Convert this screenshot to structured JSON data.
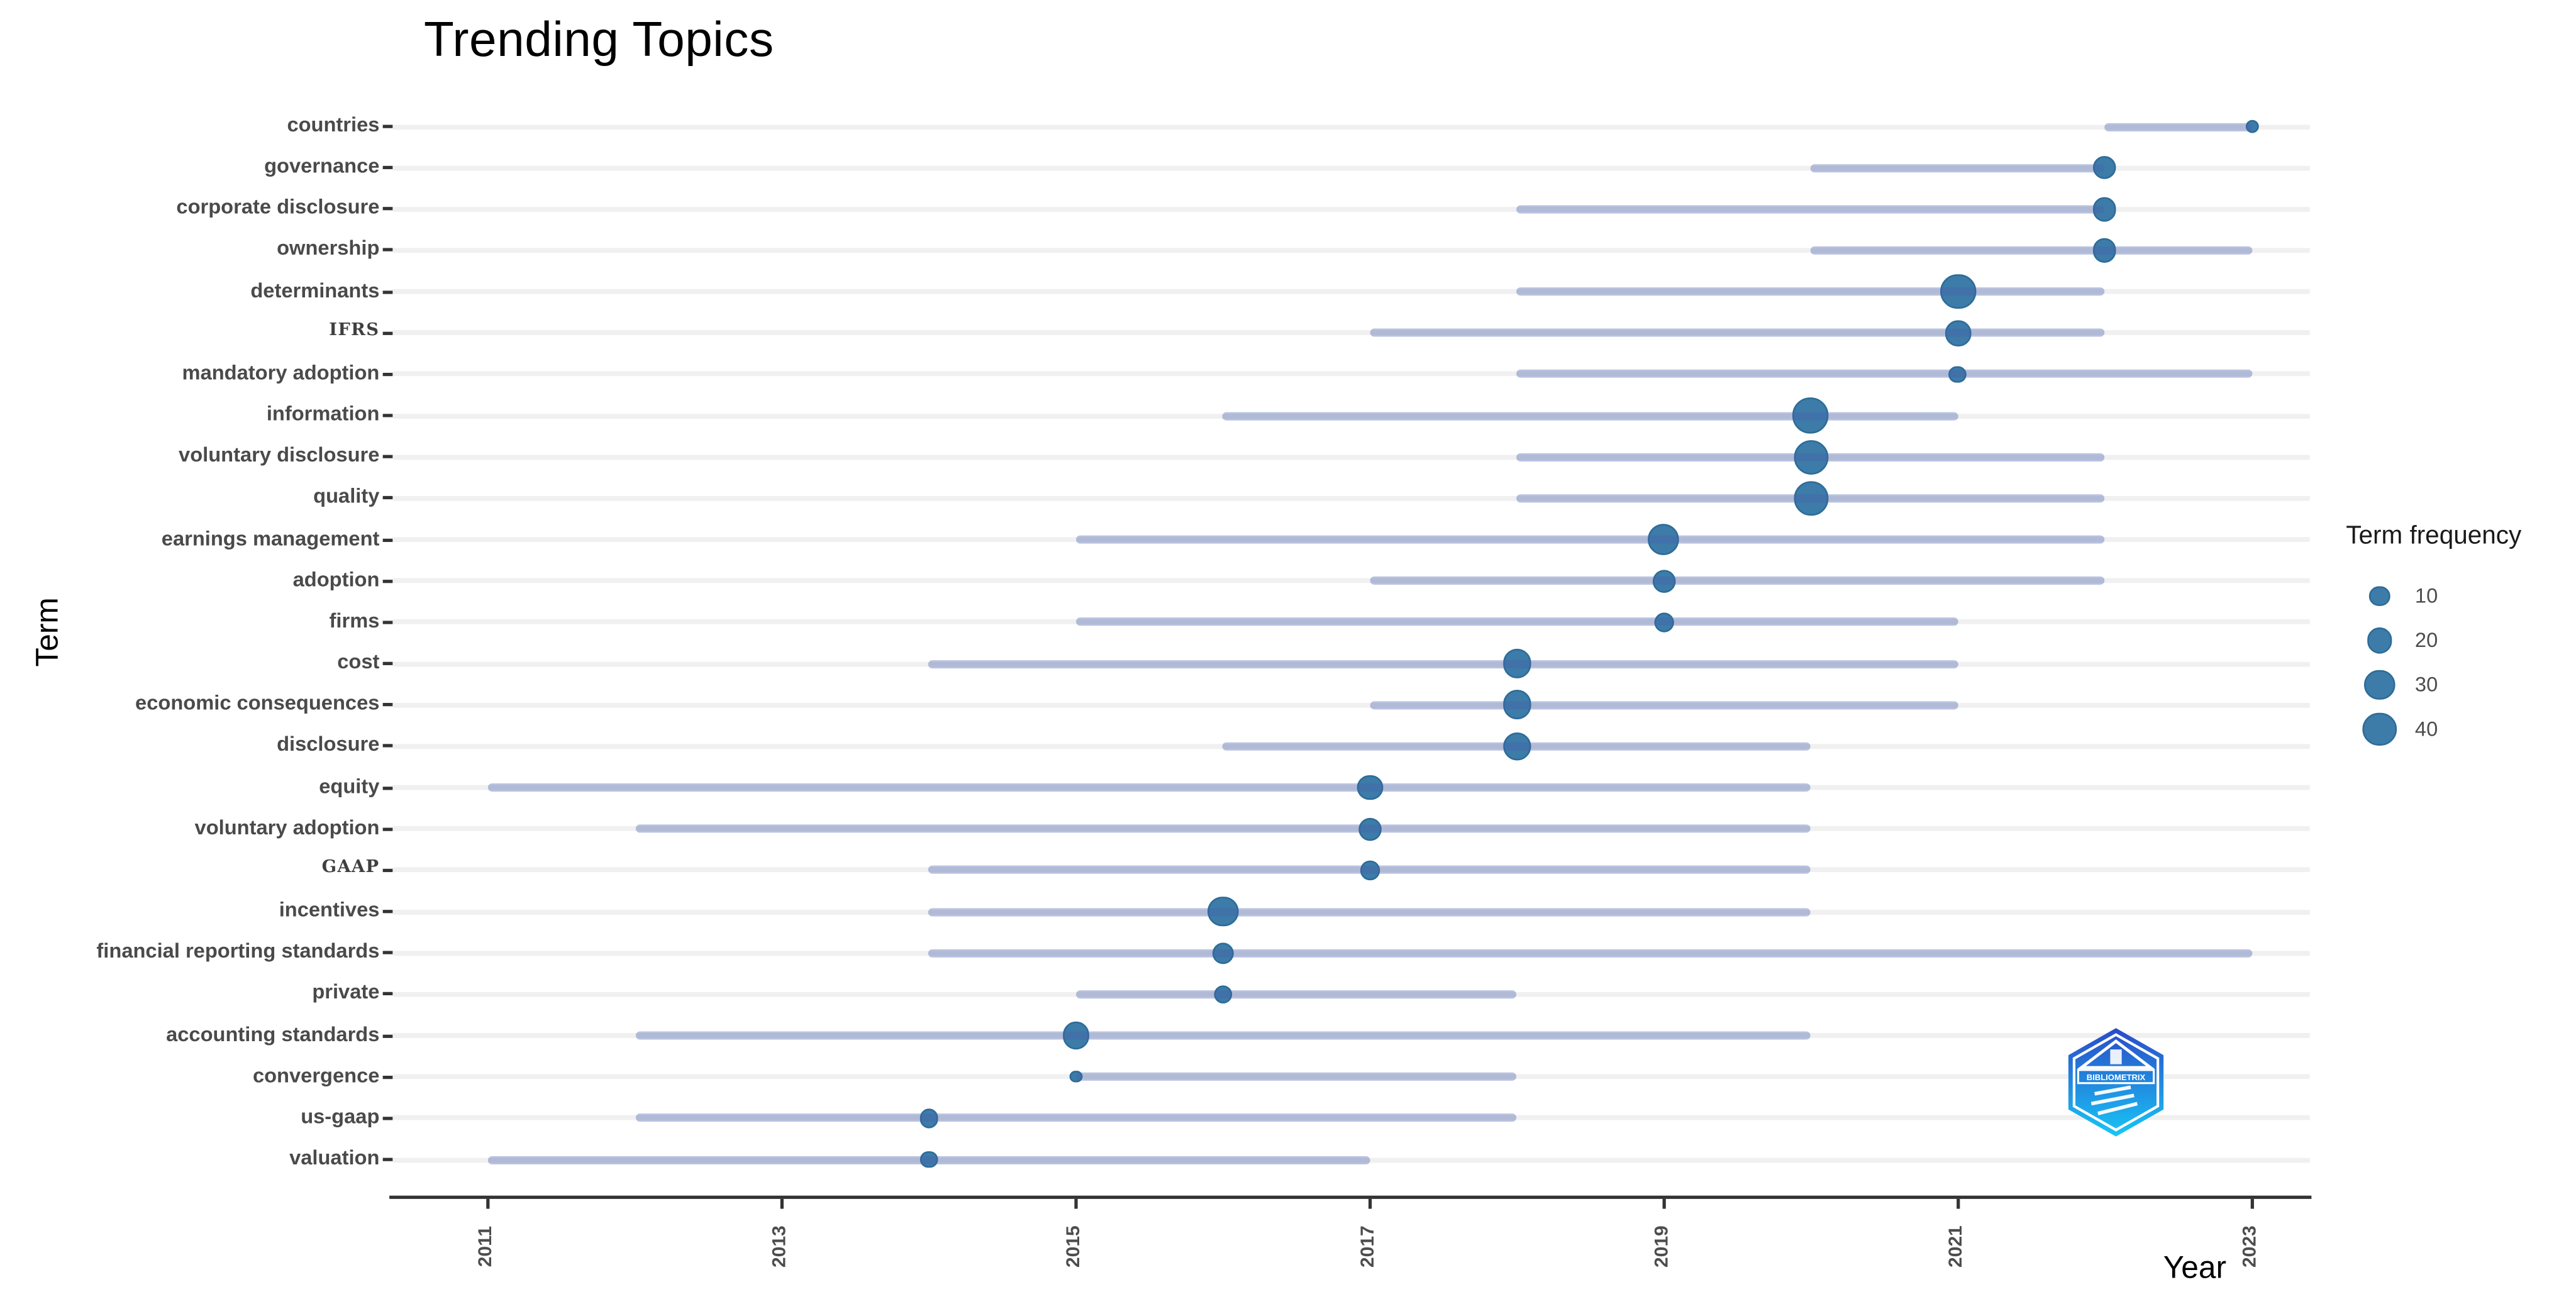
{
  "title": "Trending Topics",
  "x_axis": {
    "label": "Year",
    "ticks": [
      "2011",
      "2013",
      "2015",
      "2017",
      "2019",
      "2021",
      "2023"
    ]
  },
  "y_axis": {
    "label": "Term"
  },
  "legend": {
    "title": "Term frequency",
    "values": [
      10,
      20,
      30,
      40
    ]
  },
  "logo_text": "BIBLIOMETRIX",
  "colors": {
    "dot_fill": "#3d7ca9",
    "dot_border": "#2d6c98",
    "range_line_rgba": "rgba(72,96,170,0.38)",
    "gridline": "#f0f0f0",
    "axis": "#333333",
    "label_gray": "#4a4a4a"
  },
  "chart_data": {
    "type": "scatter",
    "title": "Trending Topics",
    "xlabel": "Year",
    "ylabel": "Term",
    "xlim": [
      2010.4,
      2023.6
    ],
    "x_ticks": [
      2011,
      2013,
      2015,
      2017,
      2019,
      2021,
      2023
    ],
    "grid": "horizontal-only",
    "legend_position": "right",
    "bubble_size_legend": {
      "title": "Term frequency",
      "values": [
        10,
        20,
        30,
        40
      ]
    },
    "series_note": "each row: term, bubble at median year sized by freq, line spans year_q1 to year_q3",
    "series": [
      {
        "term": "countries",
        "freq": 2,
        "year": 2023,
        "year_q1": 2022,
        "year_q3": 2023
      },
      {
        "term": "governance",
        "freq": 15,
        "year": 2022,
        "year_q1": 2020,
        "year_q3": 2022
      },
      {
        "term": "corporate disclosure",
        "freq": 15,
        "year": 2022,
        "year_q1": 2018,
        "year_q3": 2022
      },
      {
        "term": "ownership",
        "freq": 15,
        "year": 2022,
        "year_q1": 2020,
        "year_q3": 2023
      },
      {
        "term": "determinants",
        "freq": 45,
        "year": 2021,
        "year_q1": 2018,
        "year_q3": 2022
      },
      {
        "term": "IFRS",
        "freq": 19,
        "year": 2021,
        "year_q1": 2017,
        "year_q3": 2022
      },
      {
        "term": "mandatory adoption",
        "freq": 6,
        "year": 2021,
        "year_q1": 2018,
        "year_q3": 2023
      },
      {
        "term": "information",
        "freq": 45,
        "year": 2020,
        "year_q1": 2016,
        "year_q3": 2021
      },
      {
        "term": "voluntary disclosure",
        "freq": 42,
        "year": 2020,
        "year_q1": 2018,
        "year_q3": 2022
      },
      {
        "term": "quality",
        "freq": 40,
        "year": 2020,
        "year_q1": 2018,
        "year_q3": 2022
      },
      {
        "term": "earnings management",
        "freq": 32,
        "year": 2019,
        "year_q1": 2015,
        "year_q3": 2022
      },
      {
        "term": "adoption",
        "freq": 15,
        "year": 2019,
        "year_q1": 2017,
        "year_q3": 2022
      },
      {
        "term": "firms",
        "freq": 9,
        "year": 2019,
        "year_q1": 2015,
        "year_q3": 2021
      },
      {
        "term": "cost",
        "freq": 26,
        "year": 2018,
        "year_q1": 2014,
        "year_q3": 2021
      },
      {
        "term": "economic consequences",
        "freq": 26,
        "year": 2018,
        "year_q1": 2017,
        "year_q3": 2021
      },
      {
        "term": "disclosure",
        "freq": 24,
        "year": 2018,
        "year_q1": 2016,
        "year_q3": 2020
      },
      {
        "term": "equity",
        "freq": 18,
        "year": 2017,
        "year_q1": 2011,
        "year_q3": 2020
      },
      {
        "term": "voluntary adoption",
        "freq": 14,
        "year": 2017,
        "year_q1": 2012,
        "year_q3": 2020
      },
      {
        "term": "GAAP",
        "freq": 8,
        "year": 2017,
        "year_q1": 2014,
        "year_q3": 2020
      },
      {
        "term": "incentives",
        "freq": 30,
        "year": 2016,
        "year_q1": 2014,
        "year_q3": 2020
      },
      {
        "term": "financial reporting standards",
        "freq": 12,
        "year": 2016,
        "year_q1": 2014,
        "year_q3": 2023
      },
      {
        "term": "private",
        "freq": 7,
        "year": 2016,
        "year_q1": 2015,
        "year_q3": 2018
      },
      {
        "term": "accounting standards",
        "freq": 22,
        "year": 2015,
        "year_q1": 2012,
        "year_q3": 2020
      },
      {
        "term": "convergence",
        "freq": 1,
        "year": 2015,
        "year_q1": 2015,
        "year_q3": 2018
      },
      {
        "term": "us-gaap",
        "freq": 8,
        "year": 2014,
        "year_q1": 2012,
        "year_q3": 2018
      },
      {
        "term": "valuation",
        "freq": 5,
        "year": 2014,
        "year_q1": 2011,
        "year_q3": 2017
      }
    ]
  }
}
